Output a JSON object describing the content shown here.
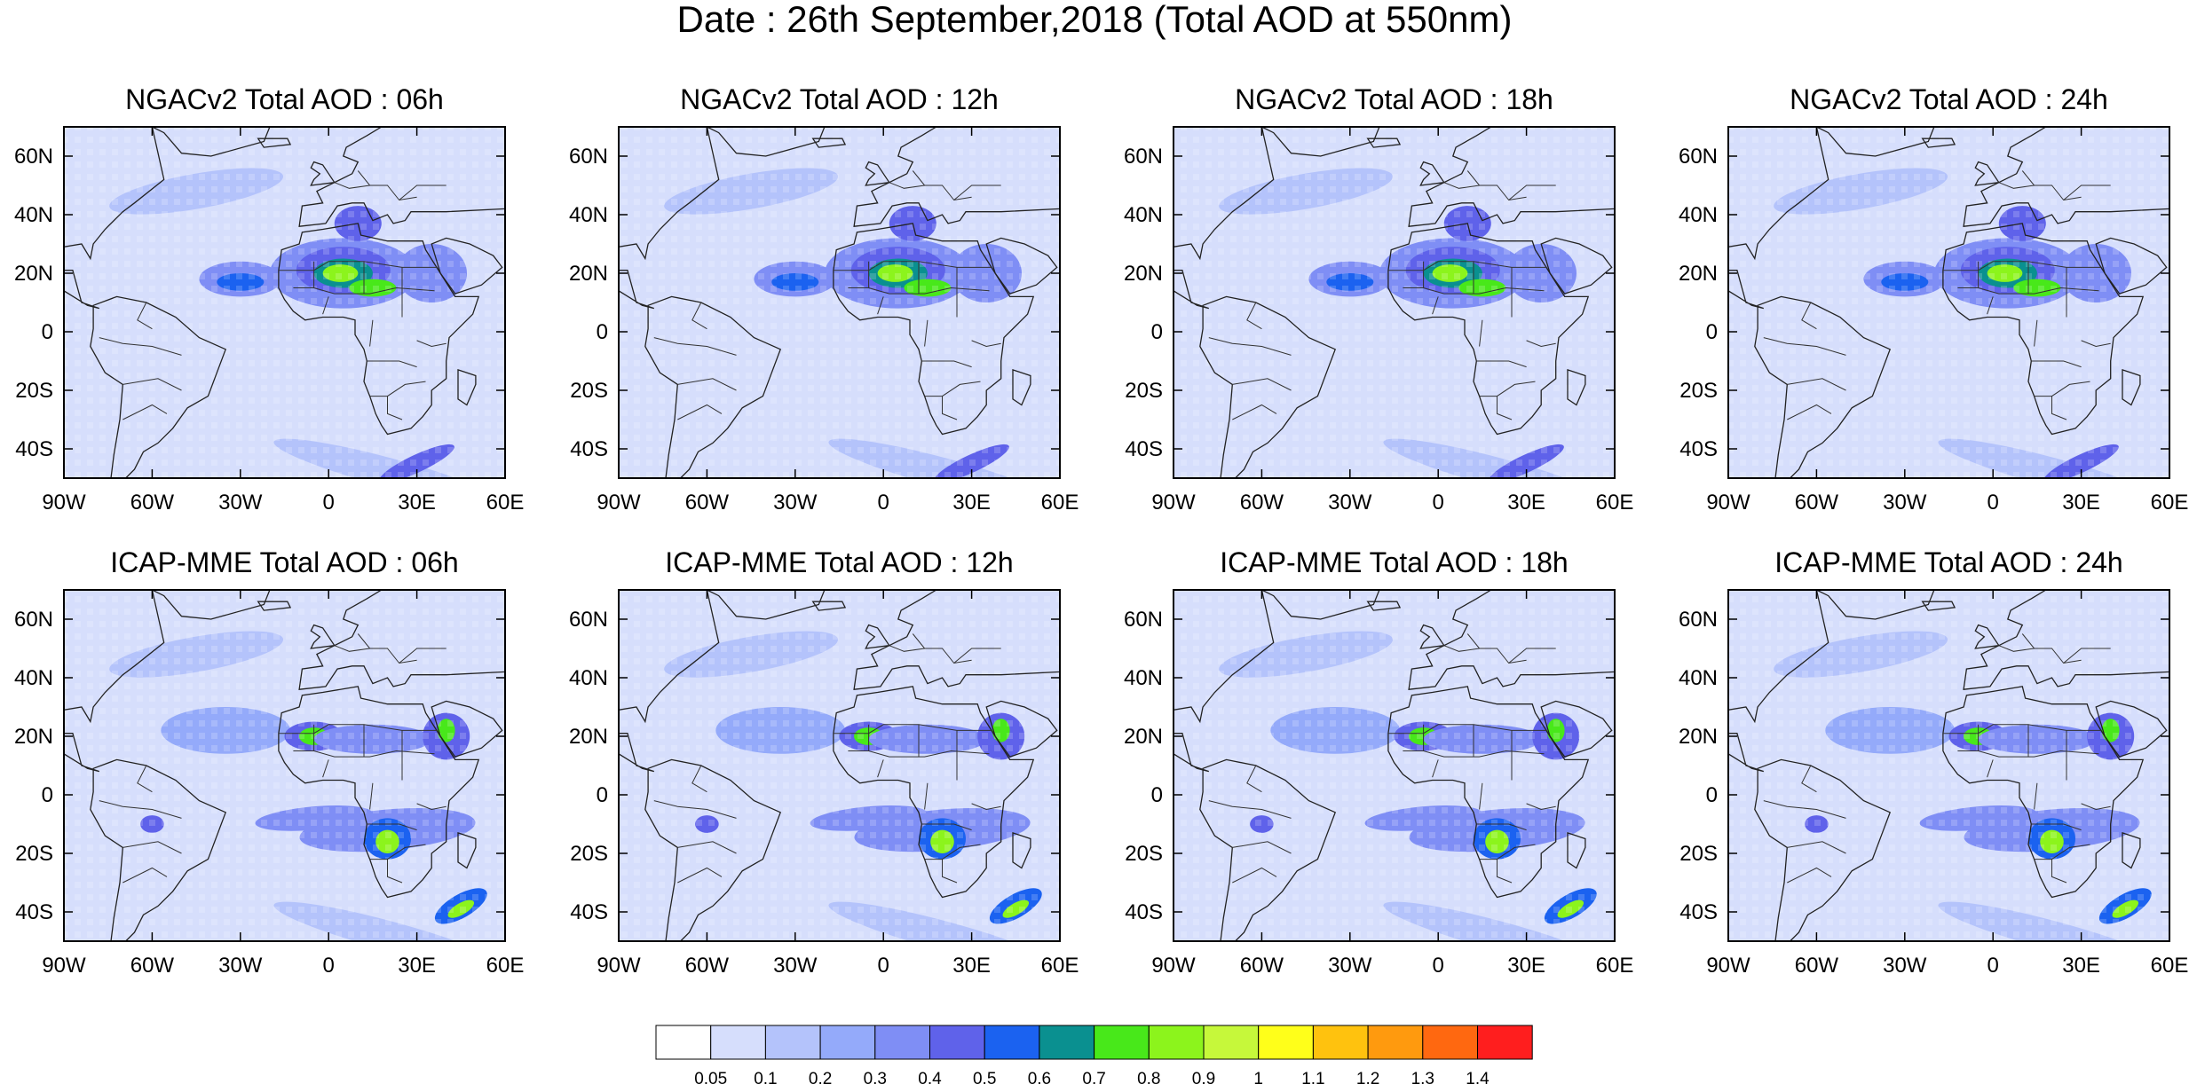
{
  "title": "Date : 26th September,2018 (Total AOD at 550nm)",
  "panels": [
    {
      "title": "NGACv2 Total AOD : 06h"
    },
    {
      "title": "NGACv2 Total AOD : 12h"
    },
    {
      "title": "NGACv2 Total AOD : 18h"
    },
    {
      "title": "NGACv2 Total AOD : 24h"
    },
    {
      "title": "ICAP-MME Total AOD : 06h"
    },
    {
      "title": "ICAP-MME Total AOD : 12h"
    },
    {
      "title": "ICAP-MME Total AOD : 18h"
    },
    {
      "title": "ICAP-MME Total AOD : 24h"
    }
  ],
  "map_extent": {
    "lon": [
      -90,
      60
    ],
    "lat": [
      -50,
      70
    ]
  },
  "lon_ticks": [
    "90W",
    "60W",
    "30W",
    "0",
    "30E",
    "60E"
  ],
  "lat_ticks": [
    "60N",
    "40N",
    "20N",
    "0",
    "20S",
    "40S"
  ],
  "colorbar": {
    "labels": [
      "0.05",
      "0.1",
      "0.2",
      "0.3",
      "0.4",
      "0.5",
      "0.6",
      "0.7",
      "0.8",
      "0.9",
      "1",
      "1.1",
      "1.2",
      "1.3",
      "1.4"
    ],
    "colors": [
      "#ffffff",
      "#d6defc",
      "#b4c3fb",
      "#94aafa",
      "#7f8ef5",
      "#5f62ea",
      "#1b62f0",
      "#0a9090",
      "#48e81a",
      "#8cf41c",
      "#c6f83a",
      "#ffff1a",
      "#ffc20e",
      "#ff9a0e",
      "#ff6810",
      "#ff1e1e"
    ]
  }
}
